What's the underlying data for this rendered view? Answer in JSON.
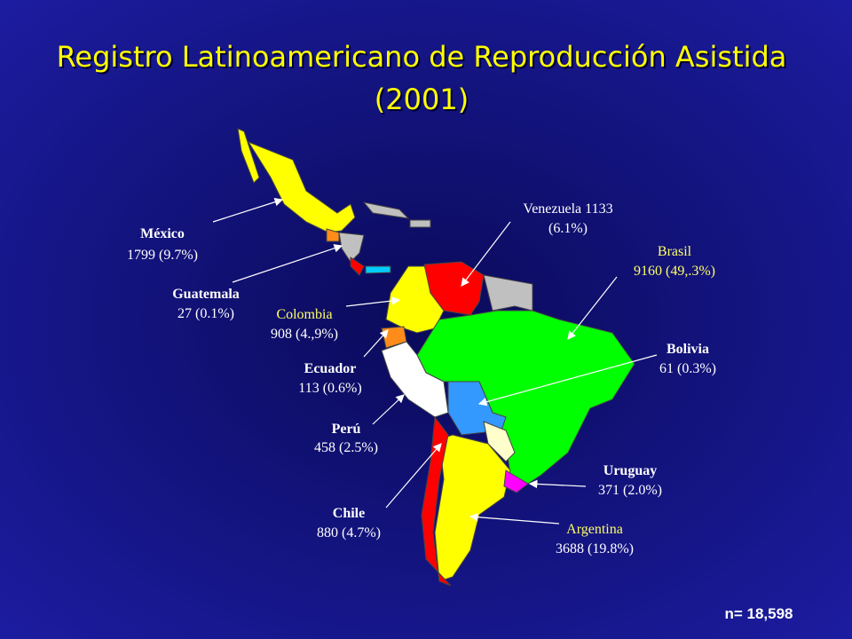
{
  "title": [
    "Registro Latinoamericano de Reproducción Asistida",
    "(2001)"
  ],
  "countries": [
    {
      "lines": [
        "México",
        "1799 (9.7%)"
      ]
    },
    {
      "lines": [
        "Guatemala",
        "27 (0.1%)"
      ]
    },
    {
      "lines": [
        "Colombia",
        "908 (4.,9%)"
      ]
    },
    {
      "lines": [
        "Ecuador",
        "113 (0.6%)"
      ]
    },
    {
      "lines": [
        "Perú",
        "458 (2.5%)"
      ]
    },
    {
      "lines": [
        "Chile",
        "880  (4.7%)"
      ]
    },
    {
      "lines": [
        "Venezuela  1133",
        "(6.1%)"
      ]
    },
    {
      "lines": [
        "Brasil",
        "9160 (49,.3%)"
      ]
    },
    {
      "lines": [
        "Bolivia",
        "61 (0.3%)"
      ]
    },
    {
      "lines": [
        "Uruguay",
        "371 (2.0%)"
      ]
    },
    {
      "lines": [
        "Argentina",
        "3688 (19.8%)"
      ]
    }
  ],
  "total": "n= 18,598"
}
